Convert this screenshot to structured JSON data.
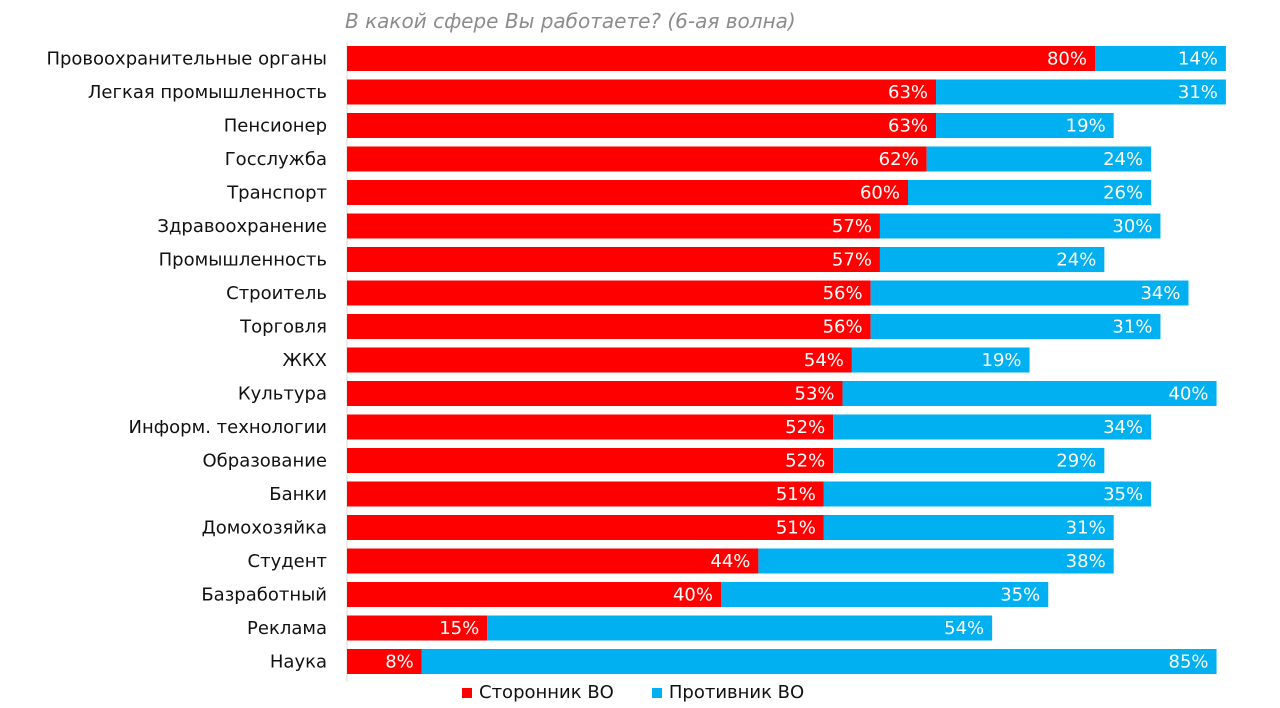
{
  "chart_data": {
    "type": "bar",
    "orientation": "horizontal",
    "stacked": true,
    "title": "В какой сфере Вы работаете? (6-ая волна)",
    "categories": [
      "Провоохранительные органы",
      "Легкая промышленность",
      "Пенсионер",
      "Госслужба",
      "Транспорт",
      "Здравоохранение",
      "Промышленность",
      "Строитель",
      "Торговля",
      "ЖКХ",
      "Культура",
      "Информ. технологии",
      "Образование",
      "Банки",
      "Домохозяйка",
      "Студент",
      "Базработный",
      "Реклама",
      "Наука"
    ],
    "series": [
      {
        "name": "Сторонник ВО",
        "color": "#ff0000",
        "values": [
          80,
          63,
          63,
          62,
          60,
          57,
          57,
          56,
          56,
          54,
          53,
          52,
          52,
          51,
          51,
          44,
          40,
          15,
          8
        ],
        "labels": [
          "80%",
          "63%",
          "63%",
          "62%",
          "60%",
          "57%",
          "57%",
          "56%",
          "56%",
          "54%",
          "53%",
          "52%",
          "52%",
          "51%",
          "51%",
          "44%",
          "40%",
          "15%",
          "8%"
        ]
      },
      {
        "name": "Противник ВО",
        "color": "#00b0f0",
        "values": [
          14,
          31,
          19,
          24,
          26,
          30,
          24,
          34,
          31,
          19,
          40,
          34,
          29,
          35,
          31,
          38,
          35,
          54,
          85
        ],
        "labels": [
          "14%",
          "31%",
          "19%",
          "24%",
          "26%",
          "30%",
          "24%",
          "34%",
          "31%",
          "19%",
          "40%",
          "34%",
          "29%",
          "35%",
          "31%",
          "38%",
          "35%",
          "54%",
          "85%"
        ]
      }
    ],
    "xlim": [
      0,
      94
    ],
    "legend_position": "bottom",
    "grid": false
  }
}
